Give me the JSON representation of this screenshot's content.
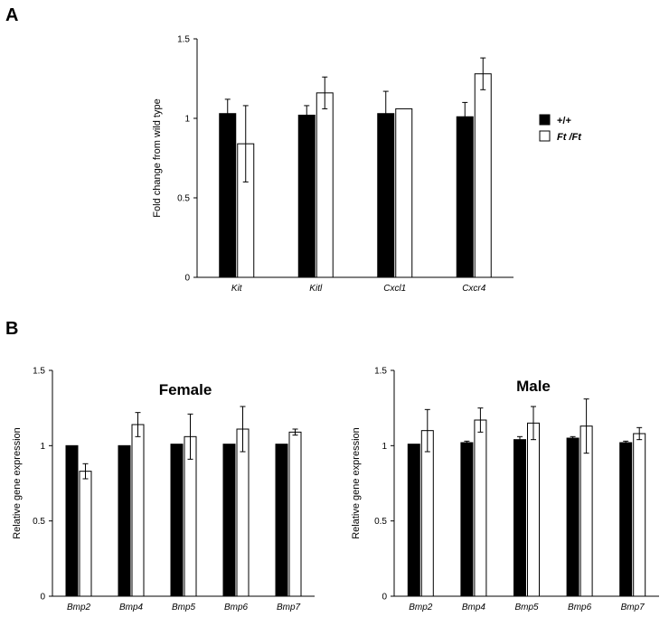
{
  "panels": [
    {
      "letter": "A"
    },
    {
      "letter": "B"
    }
  ],
  "legend": [
    {
      "name": "+/+",
      "color": "#000000"
    },
    {
      "name": "Ft /Ft",
      "color": "#ffffff"
    }
  ],
  "chart_data": [
    {
      "type": "bar",
      "title": "",
      "ylabel": "Fold change from  wild type",
      "ylim": [
        0,
        1.5
      ],
      "yticks": [
        "0",
        "0.5",
        "1",
        "1.5"
      ],
      "categories": [
        "Kit",
        "Kitl",
        "Cxcl1",
        "Cxcr4"
      ],
      "series": [
        {
          "name": "+/+",
          "color": "#000000",
          "values": [
            1.03,
            1.02,
            1.03,
            1.01
          ],
          "errors": [
            0.09,
            0.06,
            0.14,
            0.09
          ]
        },
        {
          "name": "Ft /Ft",
          "color": "#ffffff",
          "values": [
            0.84,
            1.16,
            1.06,
            1.28
          ],
          "errors": [
            0.24,
            0.1,
            0.0,
            0.1
          ]
        }
      ]
    },
    {
      "type": "bar",
      "title": "Female",
      "ylabel": "Relative gene expression",
      "ylim": [
        0,
        1.5
      ],
      "yticks": [
        "0",
        "0.5",
        "1",
        "1.5"
      ],
      "categories": [
        "Bmp2",
        "Bmp4",
        "Bmp5",
        "Bmp6",
        "Bmp7"
      ],
      "series": [
        {
          "name": "+/+",
          "color": "#000000",
          "values": [
            1.0,
            1.0,
            1.01,
            1.01,
            1.01
          ],
          "errors": [
            0,
            0,
            0,
            0,
            0
          ]
        },
        {
          "name": "Ft /Ft",
          "color": "#ffffff",
          "values": [
            0.83,
            1.14,
            1.06,
            1.11,
            1.09
          ],
          "errors": [
            0.05,
            0.08,
            0.15,
            0.15,
            0.02
          ]
        }
      ]
    },
    {
      "type": "bar",
      "title": "Male",
      "ylabel": "Relative gene expression",
      "ylim": [
        0,
        1.5
      ],
      "yticks": [
        "0",
        "0.5",
        "1",
        "1.5"
      ],
      "categories": [
        "Bmp2",
        "Bmp4",
        "Bmp5",
        "Bmp6",
        "Bmp7"
      ],
      "series": [
        {
          "name": "+/+",
          "color": "#000000",
          "values": [
            1.01,
            1.02,
            1.04,
            1.05,
            1.02
          ],
          "errors": [
            0,
            0.01,
            0.02,
            0.01,
            0.01
          ]
        },
        {
          "name": "Ft /Ft",
          "color": "#ffffff",
          "values": [
            1.1,
            1.17,
            1.15,
            1.13,
            1.08
          ],
          "errors": [
            0.14,
            0.08,
            0.11,
            0.18,
            0.04
          ]
        }
      ]
    }
  ]
}
